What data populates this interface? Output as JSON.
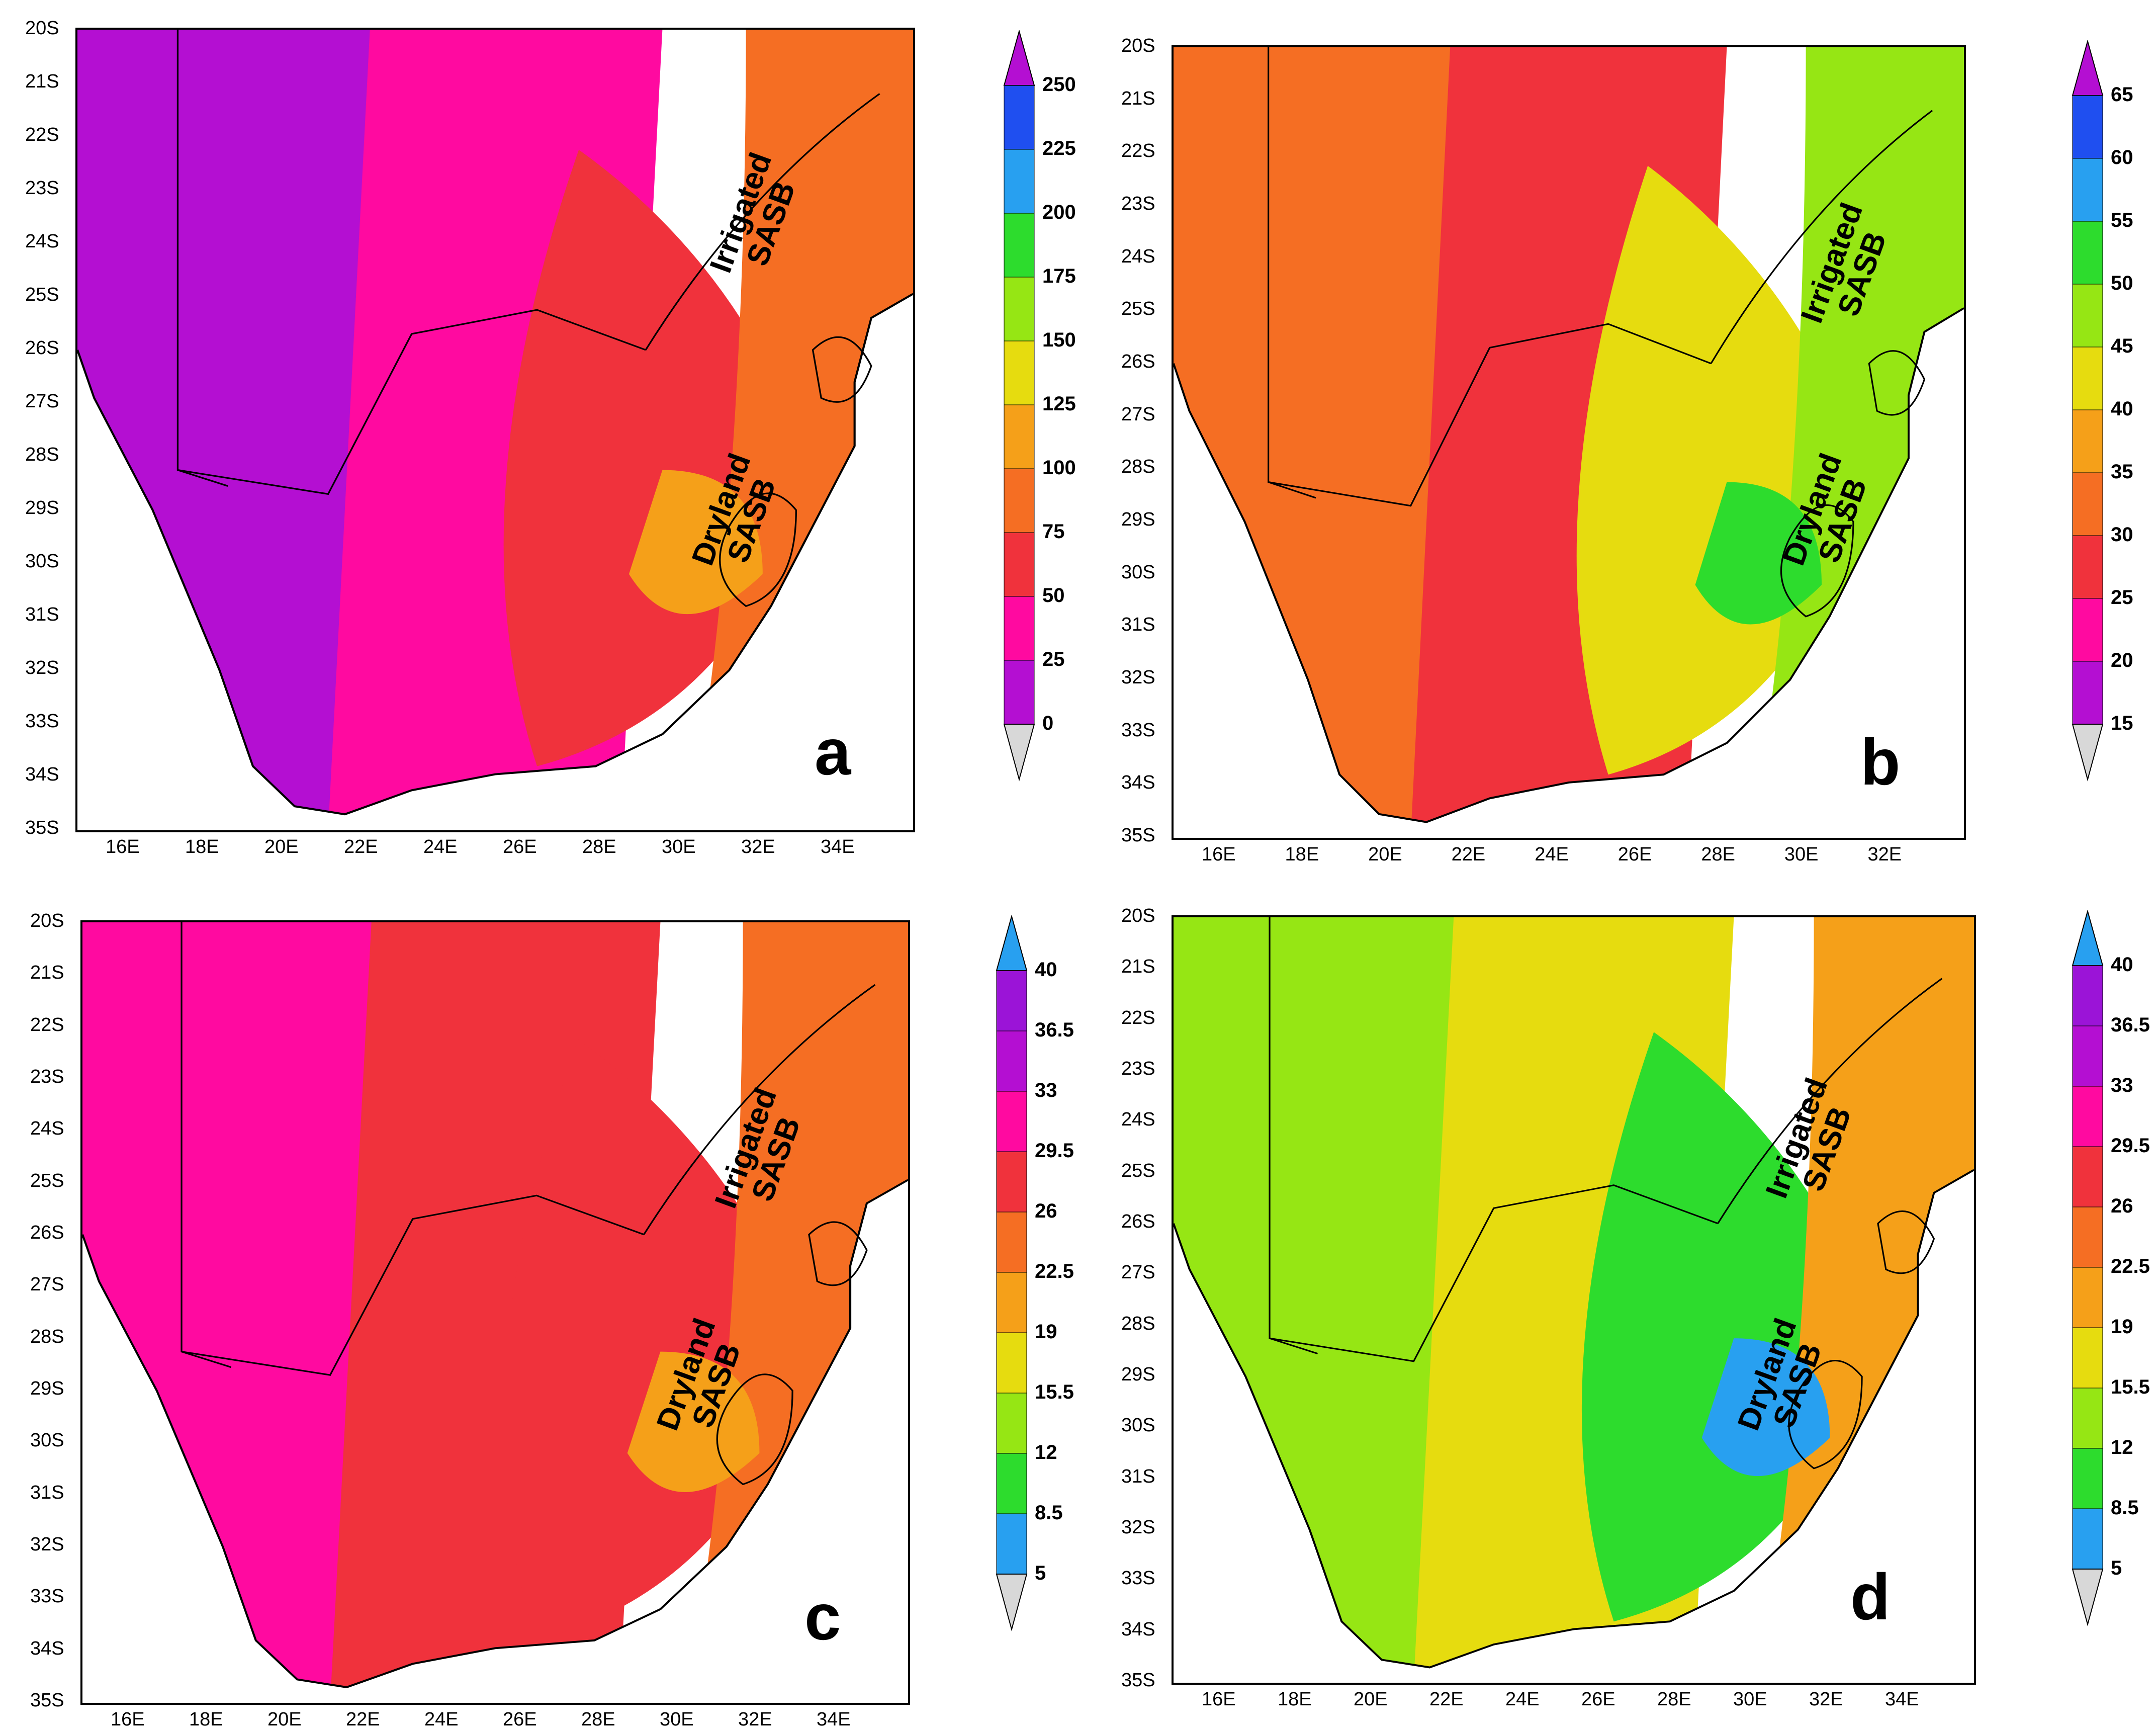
{
  "figure": {
    "panels": [
      {
        "letter": "a",
        "lat_labels": [
          "20S",
          "21S",
          "22S",
          "23S",
          "24S",
          "25S",
          "26S",
          "27S",
          "28S",
          "29S",
          "30S",
          "31S",
          "32S",
          "33S",
          "34S",
          "35S"
        ],
        "lon_labels": [
          "16E",
          "18E",
          "20E",
          "22E",
          "24E",
          "26E",
          "28E",
          "30E",
          "32E",
          "34E"
        ],
        "regions": [
          {
            "line1": "Irrigated",
            "line2": "SASB"
          },
          {
            "line1": "Dryland",
            "line2": "SASB"
          }
        ],
        "colorbar": {
          "labels": [
            "250",
            "225",
            "200",
            "175",
            "150",
            "125",
            "100",
            "75",
            "50",
            "25",
            "0"
          ],
          "colors": [
            "#b40fd2",
            "#ff0aa0",
            "#f0323c",
            "#f56e23",
            "#f5a019",
            "#e6dc0f",
            "#96e614",
            "#2ddc2d",
            "#28a0f0",
            "#1f4ff0",
            "#9b14d7"
          ]
        },
        "fill": {
          "west": "#b40fd2",
          "mid": "#ff0aa0",
          "east": "#f0323c",
          "coast": "#f56e23",
          "hot": "#f5a019"
        }
      },
      {
        "letter": "b",
        "lat_labels": [
          "20S",
          "21S",
          "22S",
          "23S",
          "24S",
          "25S",
          "26S",
          "27S",
          "28S",
          "29S",
          "30S",
          "31S",
          "32S",
          "33S",
          "34S",
          "35S"
        ],
        "lon_labels": [
          "16E",
          "18E",
          "20E",
          "22E",
          "24E",
          "26E",
          "28E",
          "30E",
          "32E"
        ],
        "regions": [
          {
            "line1": "Irrigated",
            "line2": "SASB"
          },
          {
            "line1": "Dryland",
            "line2": "SASB"
          }
        ],
        "colorbar": {
          "labels": [
            "65",
            "60",
            "55",
            "50",
            "45",
            "40",
            "35",
            "30",
            "25",
            "20",
            "15"
          ],
          "colors": [
            "#b40fd2",
            "#ff0aa0",
            "#f0323c",
            "#f56e23",
            "#f5a019",
            "#e6dc0f",
            "#96e614",
            "#2ddc2d",
            "#28a0f0",
            "#1f4ff0",
            "#9b14d7"
          ]
        },
        "fill": {
          "west": "#f56e23",
          "mid": "#f0323c",
          "east": "#e6dc0f",
          "coast": "#96e614",
          "hot": "#2ddc2d"
        }
      },
      {
        "letter": "c",
        "lat_labels": [
          "20S",
          "21S",
          "22S",
          "23S",
          "24S",
          "25S",
          "26S",
          "27S",
          "28S",
          "29S",
          "30S",
          "31S",
          "32S",
          "33S",
          "34S",
          "35S"
        ],
        "lon_labels": [
          "16E",
          "18E",
          "20E",
          "22E",
          "24E",
          "26E",
          "28E",
          "30E",
          "32E",
          "34E"
        ],
        "regions": [
          {
            "line1": "Irrigated",
            "line2": "SASB"
          },
          {
            "line1": "Dryland",
            "line2": "SASB"
          }
        ],
        "colorbar": {
          "labels": [
            "40",
            "36.5",
            "33",
            "29.5",
            "26",
            "22.5",
            "19",
            "15.5",
            "12",
            "8.5",
            "5"
          ],
          "colors": [
            "#28a0f0",
            "#2ddc2d",
            "#96e614",
            "#e6dc0f",
            "#f5a019",
            "#f56e23",
            "#f0323c",
            "#ff0aa0",
            "#b40fd2",
            "#9b14d7",
            "#1f4ff0"
          ]
        },
        "fill": {
          "west": "#ff0aa0",
          "mid": "#f0323c",
          "east": "#f0323c",
          "coast": "#f56e23",
          "hot": "#f5a019"
        }
      },
      {
        "letter": "d",
        "lat_labels": [
          "20S",
          "21S",
          "22S",
          "23S",
          "24S",
          "25S",
          "26S",
          "27S",
          "28S",
          "29S",
          "30S",
          "31S",
          "32S",
          "33S",
          "34S",
          "35S"
        ],
        "lon_labels": [
          "16E",
          "18E",
          "20E",
          "22E",
          "24E",
          "26E",
          "28E",
          "30E",
          "32E",
          "34E"
        ],
        "regions": [
          {
            "line1": "Irrigated",
            "line2": "SASB"
          },
          {
            "line1": "Dryland",
            "line2": "SASB"
          }
        ],
        "colorbar": {
          "labels": [
            "40",
            "36.5",
            "33",
            "29.5",
            "26",
            "22.5",
            "19",
            "15.5",
            "12",
            "8.5",
            "5"
          ],
          "colors": [
            "#28a0f0",
            "#2ddc2d",
            "#96e614",
            "#e6dc0f",
            "#f5a019",
            "#f56e23",
            "#f0323c",
            "#ff0aa0",
            "#b40fd2",
            "#9b14d7",
            "#1f4ff0"
          ]
        },
        "fill": {
          "west": "#96e614",
          "mid": "#e6dc0f",
          "east": "#2ddc2d",
          "coast": "#f5a019",
          "hot": "#28a0f0"
        }
      }
    ]
  }
}
